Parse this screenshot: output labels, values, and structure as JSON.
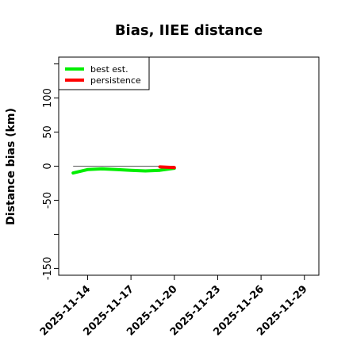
{
  "chart_data": {
    "type": "line",
    "title": "Bias, IIEE distance",
    "xlabel": "",
    "ylabel": "Distance bias (km)",
    "x_type": "date",
    "xlim": [
      "2025-11-12",
      "2025-11-30"
    ],
    "ylim": [
      -160,
      160
    ],
    "x_ticks": [
      "2025-11-14",
      "2025-11-17",
      "2025-11-20",
      "2025-11-23",
      "2025-11-26",
      "2025-11-29"
    ],
    "y_ticks": [
      -150,
      -100,
      -50,
      0,
      50,
      100,
      150
    ],
    "y_tick_labels": [
      "-150",
      "",
      "-50",
      "0",
      "50",
      "100",
      ""
    ],
    "grid": false,
    "legend_position": "top-left",
    "reference_line": {
      "y": 0,
      "x": [
        "2025-11-13",
        "2025-11-20"
      ],
      "color": "#555555"
    },
    "series": [
      {
        "name": "best est.",
        "color": "#00ee00",
        "x": [
          "2025-11-13",
          "2025-11-14",
          "2025-11-15",
          "2025-11-16",
          "2025-11-17",
          "2025-11-18",
          "2025-11-19",
          "2025-11-20"
        ],
        "values": [
          -10,
          -5,
          -4,
          -5,
          -6,
          -7,
          -6,
          -3
        ]
      },
      {
        "name": "persistence",
        "color": "#ff0000",
        "x": [
          "2025-11-19",
          "2025-11-20"
        ],
        "values": [
          -1,
          -2
        ]
      }
    ]
  }
}
